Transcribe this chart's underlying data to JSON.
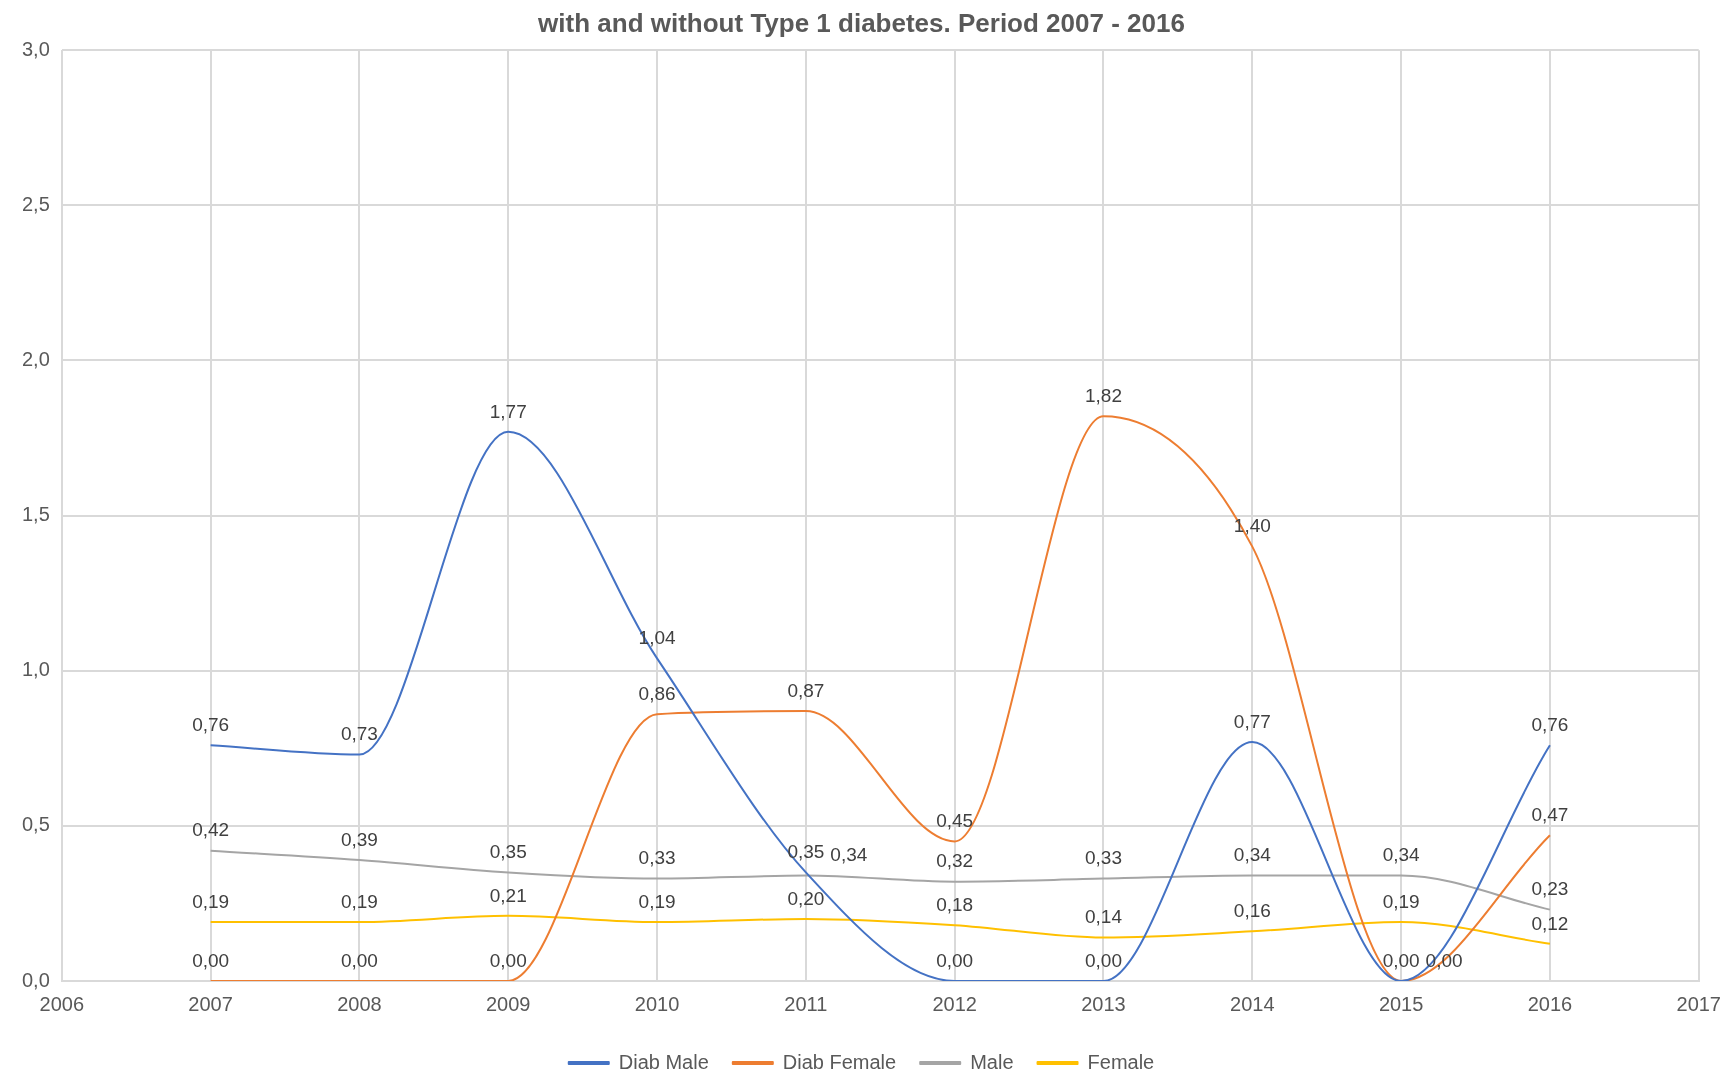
{
  "chart_data": {
    "type": "line",
    "title": "with and without Type 1 diabetes. Period 2007 - 2016",
    "x": [
      2007,
      2008,
      2009,
      2010,
      2011,
      2012,
      2013,
      2014,
      2015,
      2016
    ],
    "xlim": [
      2006,
      2017
    ],
    "xticks": [
      2006,
      2007,
      2008,
      2009,
      2010,
      2011,
      2012,
      2013,
      2014,
      2015,
      2016,
      2017
    ],
    "ylim": [
      0,
      3
    ],
    "yticks": [
      {
        "value": 0,
        "label": "0,0"
      },
      {
        "value": 0.5,
        "label": "0,5"
      },
      {
        "value": 1,
        "label": "1,0"
      },
      {
        "value": 1.5,
        "label": "1,5"
      },
      {
        "value": 2,
        "label": "2,0"
      },
      {
        "value": 2.5,
        "label": "2,5"
      },
      {
        "value": 3,
        "label": "3,0"
      }
    ],
    "grid": true,
    "legend": "bottom",
    "marker": "none",
    "line_style": "solid",
    "series": [
      {
        "name": "Diab Male",
        "color": "#4472c4",
        "values": [
          0.76,
          0.73,
          1.77,
          1.04,
          0.35,
          0,
          0,
          0.77,
          0,
          0.76
        ],
        "value_labels": [
          "0,76",
          "0,73",
          "1,77",
          "1,04",
          "0,35",
          "0,00",
          "0,00",
          "0,77",
          "0,00",
          "0,76"
        ]
      },
      {
        "name": "Diab Female",
        "color": "#ed7d31",
        "values": [
          0,
          0,
          0,
          0.86,
          0.87,
          0.45,
          1.82,
          1.4,
          0,
          0.47
        ],
        "value_labels": [
          "0,00",
          "0,00",
          "0,00",
          "0,86",
          "0,87",
          "0,45",
          "1,82",
          "1,40",
          "0,00",
          "0,47"
        ]
      },
      {
        "name": "Male",
        "color": "#a5a5a5",
        "values": [
          0.42,
          0.39,
          0.35,
          0.33,
          0.34,
          0.32,
          0.33,
          0.34,
          0.34,
          0.23
        ],
        "value_labels": [
          "0,42",
          "0,39",
          "0,35",
          "0,33",
          "0,34",
          "0,32",
          "0,33",
          "0,34",
          "0,34",
          "0,23"
        ]
      },
      {
        "name": "Female",
        "color": "#ffc000",
        "values": [
          0.19,
          0.19,
          0.21,
          0.19,
          0.2,
          0.18,
          0.14,
          0.16,
          0.19,
          0.12
        ],
        "value_labels": [
          "0,19",
          "0,19",
          "0,21",
          "0,19",
          "0,20",
          "0,18",
          "0,14",
          "0,16",
          "0,19",
          "0,12"
        ]
      }
    ]
  }
}
